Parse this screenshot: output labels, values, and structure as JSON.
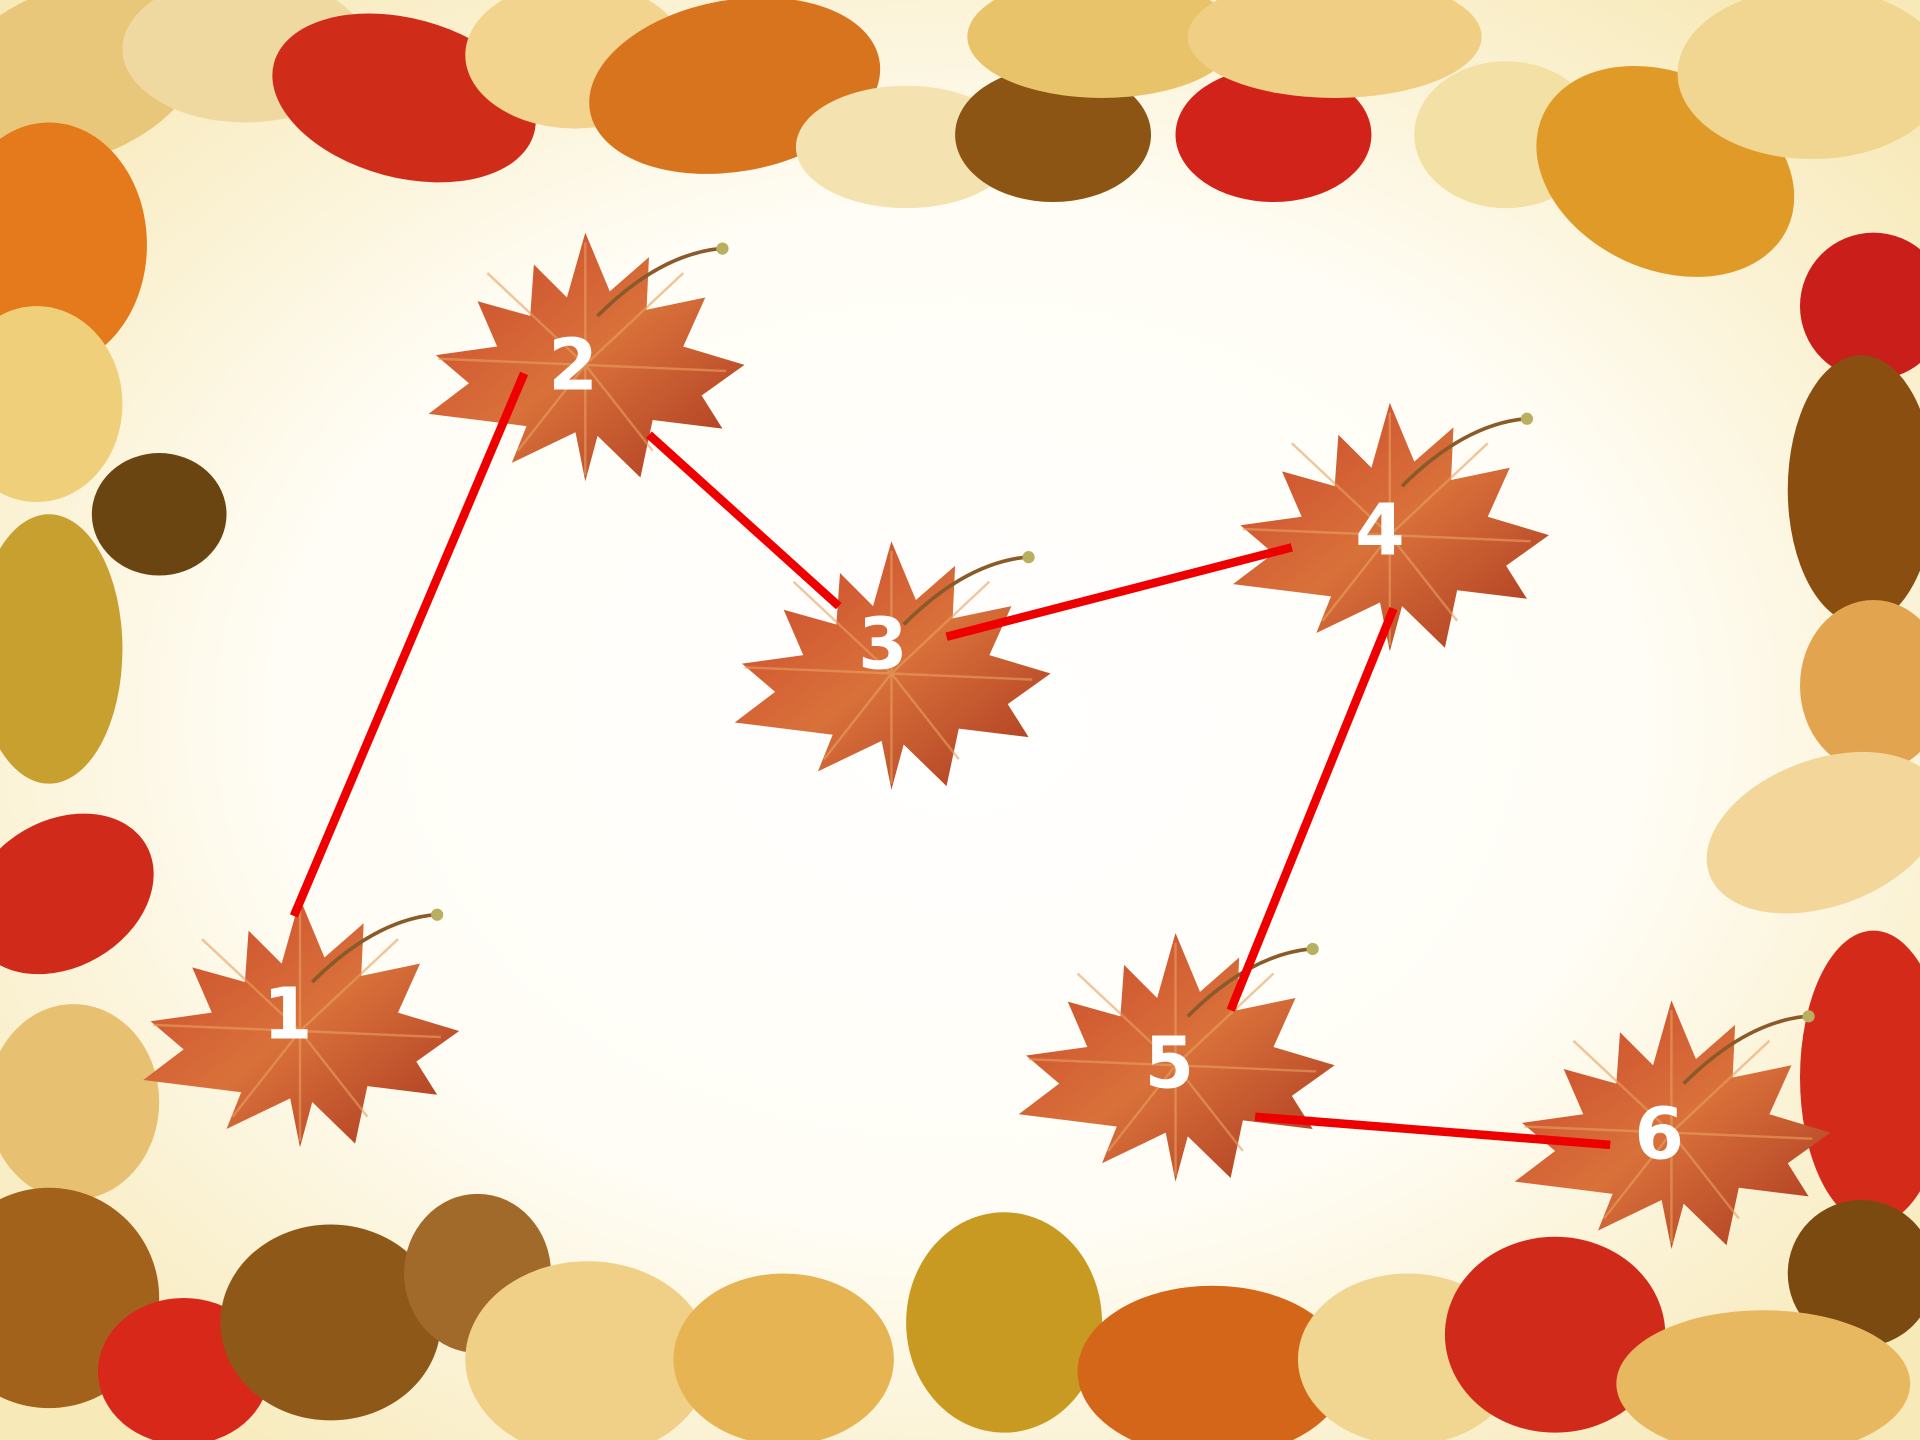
{
  "leaves": [
    {
      "label": "1"
    },
    {
      "label": "2"
    },
    {
      "label": "3"
    },
    {
      "label": "4"
    },
    {
      "label": "5"
    },
    {
      "label": "6"
    }
  ]
}
